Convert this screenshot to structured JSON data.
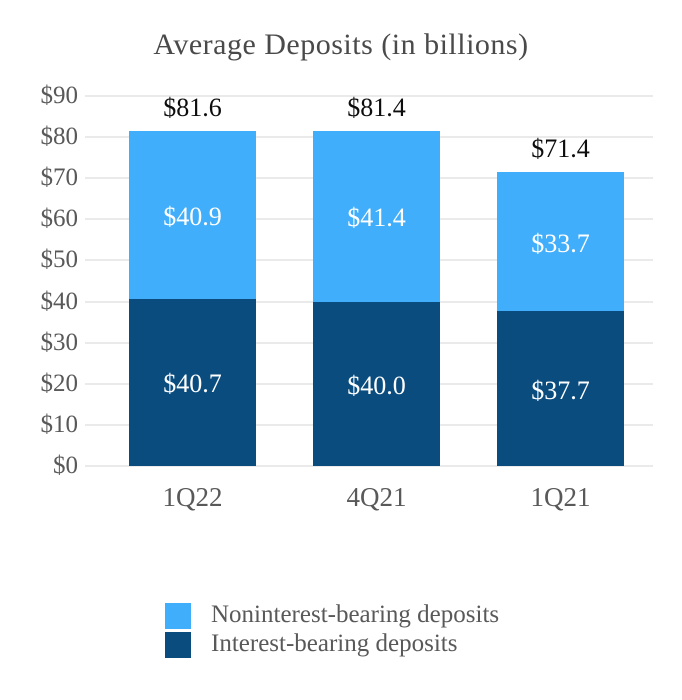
{
  "title": "Average Deposits (in billions)",
  "chart_data": {
    "type": "bar",
    "stacked": true,
    "title": "Average Deposits (in billions)",
    "categories": [
      "1Q22",
      "4Q21",
      "1Q21"
    ],
    "series": [
      {
        "name": "Interest-bearing deposits",
        "color": "#0A4C7E",
        "values": [
          40.7,
          40.0,
          37.7
        ],
        "labels": [
          "$40.7",
          "$40.0",
          "$37.7"
        ]
      },
      {
        "name": "Noninterest-bearing deposits",
        "color": "#41AEFC",
        "values": [
          40.9,
          41.4,
          33.7
        ],
        "labels": [
          "$40.9",
          "$41.4",
          "$33.7"
        ]
      }
    ],
    "totals": [
      81.6,
      81.4,
      71.4
    ],
    "total_labels": [
      "$81.6",
      "$81.4",
      "$71.4"
    ],
    "y_axis": {
      "min": 0,
      "max": 90,
      "step": 10,
      "tick_labels": [
        "$0",
        "$10",
        "$20",
        "$30",
        "$40",
        "$50",
        "$60",
        "$70",
        "$80",
        "$90"
      ]
    },
    "grid": true,
    "legend": {
      "position": "bottom",
      "items": [
        {
          "label": "Noninterest-bearing deposits",
          "color": "#41AEFC"
        },
        {
          "label": "Interest-bearing deposits",
          "color": "#0A4C7E"
        }
      ]
    }
  },
  "colors": {
    "noninterest_bearing": "#41AEFC",
    "interest_bearing": "#0A4C7E",
    "gridline": "#EAEAEA",
    "axis_text": "#595959",
    "title_text": "#4A4A4A",
    "total_label_text": "#0D0D0D",
    "segment_label_text": "#FFFFFF",
    "background": "#FFFFFF"
  }
}
